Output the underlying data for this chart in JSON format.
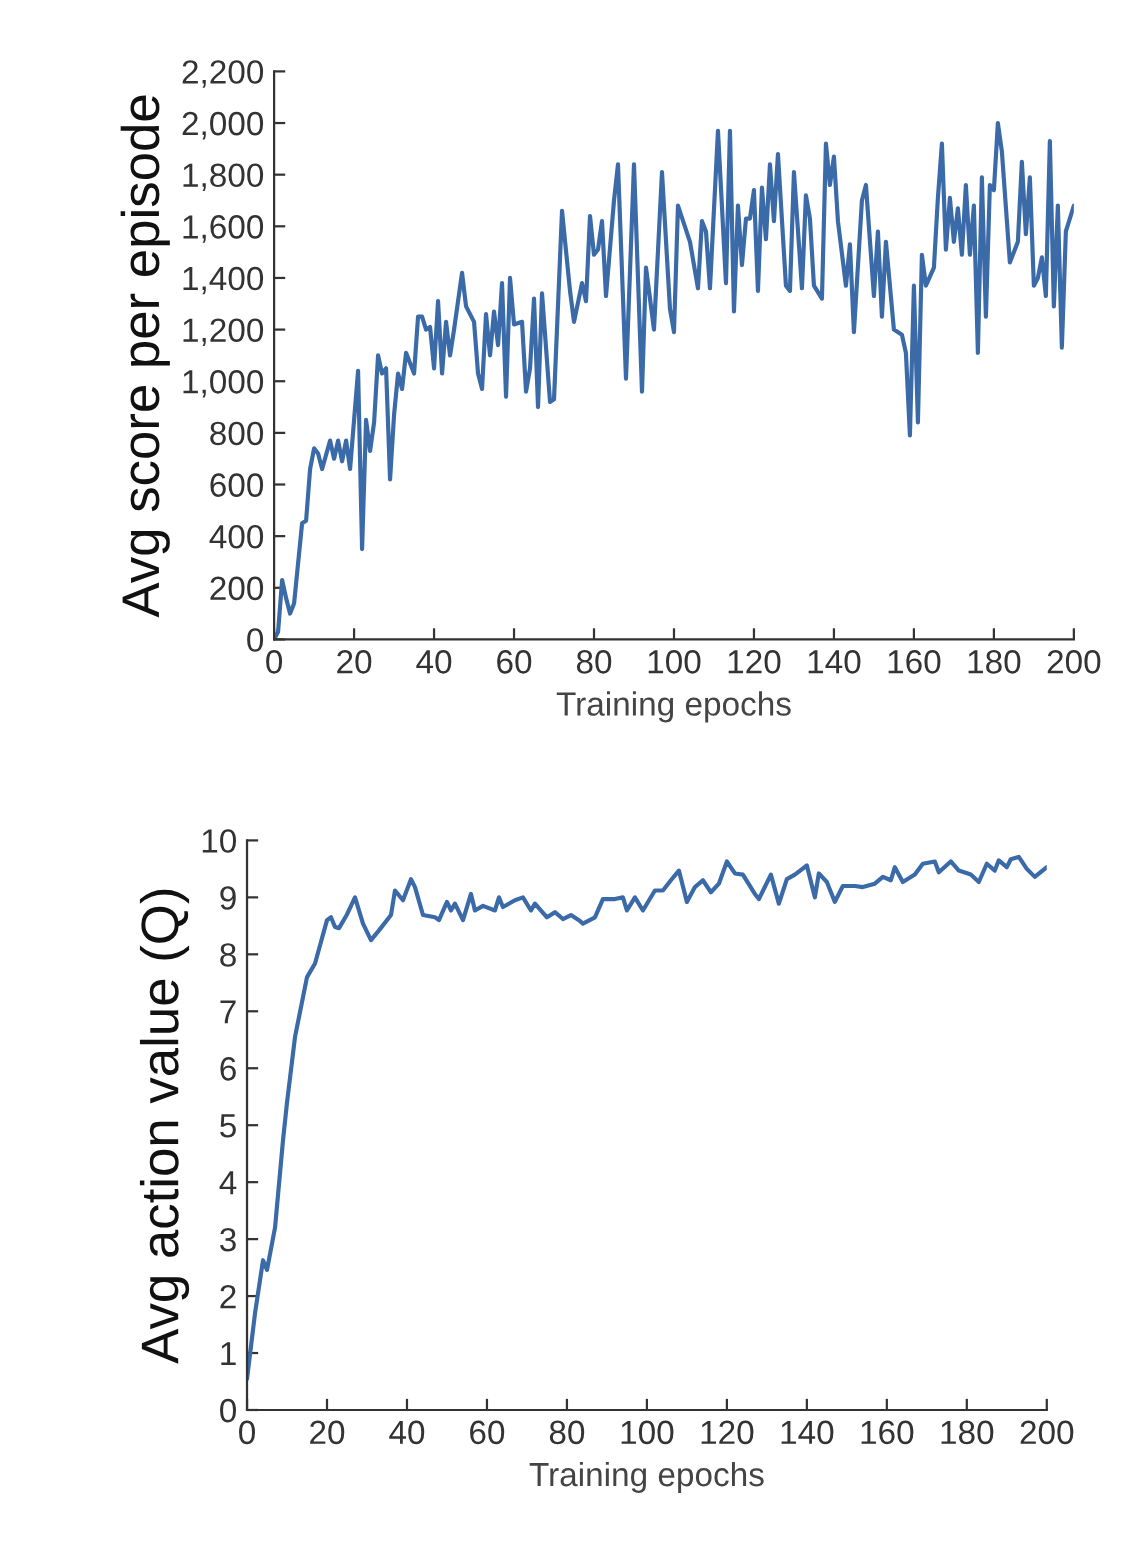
{
  "chart_data": [
    {
      "type": "line",
      "xlabel": "Training epochs",
      "ylabel": "Avg score per episode",
      "grid": false,
      "legend": false,
      "marker": "none",
      "line_style": "solid",
      "xlim": [
        0,
        200
      ],
      "xticks": [
        0,
        20,
        40,
        60,
        80,
        100,
        120,
        140,
        160,
        180,
        200
      ],
      "ylim": [
        0,
        2200
      ],
      "yticks": [
        0,
        200,
        400,
        600,
        800,
        {
          "value": 1000,
          "label": "1,000"
        },
        {
          "value": 1200,
          "label": "1,200"
        },
        {
          "value": 1400,
          "label": "1,400"
        },
        {
          "value": 1600,
          "label": "1,600"
        },
        {
          "value": 1800,
          "label": "1,800"
        },
        {
          "value": 2000,
          "label": "2,000"
        },
        {
          "value": 2200,
          "label": "2,200"
        }
      ],
      "series": [
        {
          "color": "#3a6aa8",
          "x": [
            0,
            1,
            2,
            3,
            4,
            5,
            7,
            8,
            9,
            10,
            11,
            12,
            14,
            15,
            16,
            17,
            18,
            19,
            21,
            22,
            23,
            24,
            25,
            26,
            27,
            28,
            29,
            30,
            31,
            32,
            33,
            35,
            36,
            37,
            38,
            39,
            40,
            41,
            42,
            43,
            44,
            45,
            47,
            48,
            50,
            51,
            52,
            53,
            54,
            55,
            56,
            57,
            58,
            59,
            60,
            62,
            63,
            64,
            65,
            66,
            67,
            69,
            70,
            72,
            74,
            75,
            77,
            78,
            79,
            80,
            81,
            82,
            83,
            85,
            86,
            88,
            90,
            92,
            93,
            95,
            97,
            99,
            100,
            101,
            104,
            106,
            107,
            108,
            109,
            111,
            113,
            114,
            115,
            116,
            117,
            118,
            119,
            120,
            121,
            122,
            123,
            124,
            125,
            126,
            128,
            129,
            130,
            132,
            133,
            134,
            135,
            137,
            138,
            139,
            140,
            141,
            143,
            144,
            145,
            147,
            148,
            150,
            151,
            152,
            153,
            155,
            157,
            158,
            159,
            160,
            161,
            162,
            163,
            165,
            166,
            167,
            168,
            169,
            170,
            171,
            172,
            173,
            174,
            175,
            176,
            177,
            178,
            179,
            180,
            181,
            182,
            184,
            186,
            187,
            188,
            189,
            190,
            191,
            192,
            193,
            194,
            195,
            196,
            197,
            198,
            200
          ],
          "values": [
            0,
            30,
            230,
            160,
            100,
            140,
            450,
            460,
            660,
            740,
            720,
            660,
            770,
            700,
            770,
            690,
            770,
            660,
            1040,
            350,
            850,
            730,
            840,
            1100,
            1030,
            1050,
            620,
            870,
            1030,
            970,
            1110,
            1030,
            1250,
            1250,
            1200,
            1210,
            1050,
            1310,
            1030,
            1230,
            1100,
            1200,
            1420,
            1290,
            1230,
            1030,
            970,
            1260,
            1100,
            1270,
            1140,
            1380,
            940,
            1400,
            1220,
            1230,
            960,
            1050,
            1320,
            900,
            1340,
            920,
            930,
            1660,
            1350,
            1230,
            1380,
            1310,
            1640,
            1490,
            1510,
            1620,
            1330,
            1700,
            1840,
            1010,
            1840,
            960,
            1440,
            1200,
            1810,
            1280,
            1190,
            1680,
            1540,
            1360,
            1620,
            1580,
            1360,
            1970,
            1380,
            1970,
            1270,
            1680,
            1450,
            1630,
            1630,
            1740,
            1350,
            1750,
            1550,
            1840,
            1620,
            1880,
            1370,
            1350,
            1810,
            1360,
            1720,
            1630,
            1370,
            1320,
            1920,
            1760,
            1870,
            1620,
            1370,
            1530,
            1190,
            1700,
            1760,
            1330,
            1580,
            1250,
            1540,
            1200,
            1180,
            1110,
            790,
            1370,
            840,
            1490,
            1370,
            1440,
            1710,
            1920,
            1510,
            1710,
            1540,
            1670,
            1490,
            1760,
            1490,
            1680,
            1110,
            1790,
            1250,
            1760,
            1740,
            2000,
            1890,
            1460,
            1540,
            1850,
            1570,
            1790,
            1370,
            1400,
            1480,
            1330,
            1930,
            1290,
            1680,
            1130,
            1580,
            1680
          ]
        }
      ]
    },
    {
      "type": "line",
      "xlabel": "Training epochs",
      "ylabel": "Avg action value (Q)",
      "grid": false,
      "legend": false,
      "marker": "none",
      "line_style": "solid",
      "xlim": [
        0,
        200
      ],
      "xticks": [
        0,
        20,
        40,
        60,
        80,
        100,
        120,
        140,
        160,
        180,
        200
      ],
      "ylim": [
        0,
        10
      ],
      "yticks": [
        0,
        1,
        2,
        3,
        4,
        5,
        6,
        7,
        8,
        9,
        10
      ],
      "series": [
        {
          "color": "#3a6aa8",
          "x": [
            0,
            2,
            4,
            5,
            7,
            9,
            10,
            12,
            15,
            17,
            20,
            21,
            22,
            23,
            25,
            27,
            29,
            31,
            33,
            36,
            37,
            39,
            41,
            42,
            44,
            47,
            48,
            50,
            51,
            52,
            54,
            56,
            57,
            59,
            62,
            63,
            64,
            67,
            69,
            71,
            72,
            75,
            77,
            79,
            81,
            83,
            84,
            87,
            89,
            92,
            94,
            95,
            97,
            99,
            102,
            104,
            106,
            108,
            110,
            112,
            114,
            116,
            118,
            120,
            122,
            124,
            127,
            128,
            131,
            133,
            135,
            137,
            140,
            142,
            143,
            145,
            147,
            149,
            152,
            154,
            157,
            159,
            161,
            162,
            164,
            167,
            169,
            172,
            173,
            176,
            178,
            181,
            183,
            185,
            187,
            188,
            190,
            191,
            193,
            195,
            197,
            200
          ],
          "values": [
            0.55,
            1.7,
            2.63,
            2.46,
            3.2,
            4.74,
            5.4,
            6.55,
            7.6,
            7.84,
            8.6,
            8.65,
            8.48,
            8.46,
            8.7,
            9.0,
            8.54,
            8.25,
            8.42,
            8.69,
            9.12,
            8.95,
            9.32,
            9.18,
            8.69,
            8.65,
            8.6,
            8.92,
            8.77,
            8.89,
            8.6,
            9.06,
            8.77,
            8.85,
            8.77,
            9.0,
            8.83,
            8.95,
            9.0,
            8.77,
            8.89,
            8.65,
            8.74,
            8.62,
            8.69,
            8.6,
            8.54,
            8.65,
            8.97,
            8.97,
            9.0,
            8.77,
            9.0,
            8.77,
            9.12,
            9.12,
            9.3,
            9.47,
            8.92,
            9.18,
            9.3,
            9.09,
            9.24,
            9.63,
            9.42,
            9.4,
            9.06,
            8.97,
            9.4,
            8.89,
            9.32,
            9.4,
            9.56,
            9.0,
            9.42,
            9.27,
            8.92,
            9.2,
            9.2,
            9.18,
            9.24,
            9.36,
            9.3,
            9.53,
            9.27,
            9.4,
            9.59,
            9.63,
            9.44,
            9.63,
            9.47,
            9.4,
            9.27,
            9.59,
            9.47,
            9.65,
            9.53,
            9.67,
            9.71,
            9.5,
            9.36,
            9.53
          ]
        }
      ]
    }
  ]
}
